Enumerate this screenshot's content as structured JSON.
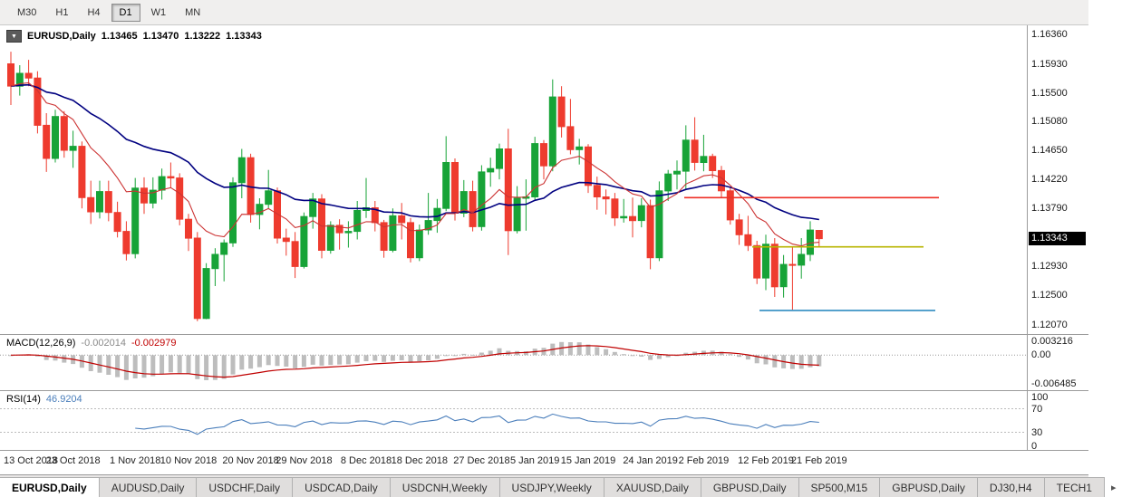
{
  "toolbar": {
    "timeframes": [
      {
        "label": "M30",
        "active": false
      },
      {
        "label": "H1",
        "active": false
      },
      {
        "label": "H4",
        "active": false
      },
      {
        "label": "D1",
        "active": true
      },
      {
        "label": "W1",
        "active": false
      },
      {
        "label": "MN",
        "active": false
      }
    ]
  },
  "chart_header": {
    "dropdown_icon": "▼",
    "symbol_label": "EURUSD,Daily",
    "open": "1.13465",
    "high": "1.13470",
    "low": "1.13222",
    "close": "1.13343"
  },
  "price_axis": {
    "labels": [
      "1.16360",
      "1.15930",
      "1.15500",
      "1.15080",
      "1.14650",
      "1.14220",
      "1.13790",
      "1.12930",
      "1.12500",
      "1.12070"
    ],
    "current": "1.13343",
    "current_value": 1.13343
  },
  "indicators": {
    "macd": {
      "label": "MACD(12,26,9)",
      "main_value": "-0.002014",
      "signal_value": "-0.002979",
      "axis": [
        {
          "text": "0.003216",
          "value": 0.003216
        },
        {
          "text": "0.00",
          "value": 0
        },
        {
          "text": "-0.006485",
          "value": -0.006485
        }
      ]
    },
    "rsi": {
      "label": "RSI(14)",
      "value": "46.9204",
      "axis": [
        {
          "text": "100",
          "value": 100
        },
        {
          "text": "70",
          "value": 70
        },
        {
          "text": "30",
          "value": 30
        },
        {
          "text": "0",
          "value": 0
        }
      ]
    }
  },
  "date_axis": {
    "labels": [
      {
        "text": "13 Oct 2018",
        "idx": 0
      },
      {
        "text": "23 Oct 2018",
        "idx": 7
      },
      {
        "text": "1 Nov 2018",
        "idx": 14
      },
      {
        "text": "10 Nov 2018",
        "idx": 20
      },
      {
        "text": "20 Nov 2018",
        "idx": 27
      },
      {
        "text": "29 Nov 2018",
        "idx": 33
      },
      {
        "text": "8 Dec 2018",
        "idx": 40
      },
      {
        "text": "18 Dec 2018",
        "idx": 46
      },
      {
        "text": "27 Dec 2018",
        "idx": 53
      },
      {
        "text": "5 Jan 2019",
        "idx": 59
      },
      {
        "text": "15 Jan 2019",
        "idx": 65
      },
      {
        "text": "24 Jan 2019",
        "idx": 72
      },
      {
        "text": "2 Feb 2019",
        "idx": 78
      },
      {
        "text": "12 Feb 2019",
        "idx": 85
      },
      {
        "text": "21 Feb 2019",
        "idx": 91
      }
    ]
  },
  "tabs": [
    {
      "label": "EURUSD,Daily",
      "active": true
    },
    {
      "label": "AUDUSD,Daily",
      "active": false
    },
    {
      "label": "USDCHF,Daily",
      "active": false
    },
    {
      "label": "USDCAD,Daily",
      "active": false
    },
    {
      "label": "USDCNH,Weekly",
      "active": false
    },
    {
      "label": "USDJPY,Weekly",
      "active": false
    },
    {
      "label": "XAUUSD,Daily",
      "active": false
    },
    {
      "label": "GBPUSD,Daily",
      "active": false
    },
    {
      "label": "SP500,M15",
      "active": false
    },
    {
      "label": "GBPUSD,Daily",
      "active": false
    },
    {
      "label": "DJ30,H4",
      "active": false
    },
    {
      "label": "TECH1",
      "active": false
    }
  ],
  "tabbar": {
    "scroll_right_icon": "▸"
  },
  "colors": {
    "candle_up": "#17a337",
    "candle_down": "#ee3b2e",
    "ma_slow": "#000080",
    "ma_fast": "#cc3333",
    "macd_hist": "#bdbdbd",
    "macd_signal": "#c00000",
    "rsi_line": "#4a7ebb",
    "axis_line": "#9c9c9c",
    "price_marker_bg": "#000000"
  },
  "chart_data": {
    "type": "candlestick",
    "symbol": "EURUSD",
    "timeframe": "Daily",
    "title": "EURUSD,Daily",
    "ylim": [
      1.1193,
      1.165
    ],
    "overlays": {
      "ma_fast_period": 10,
      "ma_slow_period": 30
    },
    "macd_params": [
      12,
      26,
      9
    ],
    "rsi_period": 14,
    "hlines": [
      {
        "price": 1.1395,
        "x1": 0.667,
        "x2": 0.915,
        "color": "#ee2e24"
      },
      {
        "price": 1.1322,
        "x1": 0.733,
        "x2": 0.9,
        "color": "#b8b400"
      },
      {
        "price": 1.1228,
        "x1": 0.74,
        "x2": 0.912,
        "color": "#2e8bc0"
      }
    ],
    "ohlc": [
      [
        1.1593,
        1.1611,
        1.1532,
        1.156
      ],
      [
        1.156,
        1.1591,
        1.1546,
        1.1579
      ],
      [
        1.1579,
        1.1599,
        1.156,
        1.1572
      ],
      [
        1.1572,
        1.1582,
        1.149,
        1.1502
      ],
      [
        1.1502,
        1.152,
        1.1433,
        1.1453
      ],
      [
        1.1453,
        1.1525,
        1.1447,
        1.1515
      ],
      [
        1.1515,
        1.1523,
        1.1454,
        1.1465
      ],
      [
        1.1465,
        1.1494,
        1.1439,
        1.1471
      ],
      [
        1.1471,
        1.1478,
        1.1379,
        1.1395
      ],
      [
        1.1395,
        1.142,
        1.1356,
        1.1374
      ],
      [
        1.1374,
        1.142,
        1.1364,
        1.1404
      ],
      [
        1.1404,
        1.142,
        1.136,
        1.1373
      ],
      [
        1.1373,
        1.1389,
        1.1336,
        1.1345
      ],
      [
        1.1345,
        1.136,
        1.1302,
        1.1312
      ],
      [
        1.1312,
        1.1424,
        1.1305,
        1.1409
      ],
      [
        1.1409,
        1.1425,
        1.1371,
        1.1387
      ],
      [
        1.1387,
        1.1425,
        1.1379,
        1.1406
      ],
      [
        1.1406,
        1.1438,
        1.1392,
        1.1426
      ],
      [
        1.1426,
        1.1447,
        1.141,
        1.1424
      ],
      [
        1.1424,
        1.1431,
        1.1354,
        1.1363
      ],
      [
        1.1363,
        1.1371,
        1.1316,
        1.1335
      ],
      [
        1.1335,
        1.1344,
        1.1212,
        1.1216
      ],
      [
        1.1216,
        1.1298,
        1.1215,
        1.129
      ],
      [
        1.129,
        1.132,
        1.1264,
        1.1311
      ],
      [
        1.1311,
        1.1333,
        1.1271,
        1.1328
      ],
      [
        1.1328,
        1.1425,
        1.1322,
        1.1417
      ],
      [
        1.1417,
        1.1467,
        1.1394,
        1.1454
      ],
      [
        1.1454,
        1.146,
        1.1358,
        1.137
      ],
      [
        1.137,
        1.1394,
        1.1348,
        1.1385
      ],
      [
        1.1385,
        1.1436,
        1.1378,
        1.1405
      ],
      [
        1.1405,
        1.141,
        1.1327,
        1.1335
      ],
      [
        1.1335,
        1.1349,
        1.1309,
        1.133
      ],
      [
        1.133,
        1.1344,
        1.1276,
        1.1293
      ],
      [
        1.1293,
        1.1373,
        1.129,
        1.1367
      ],
      [
        1.1367,
        1.1402,
        1.1349,
        1.1393
      ],
      [
        1.1393,
        1.14,
        1.1305,
        1.1317
      ],
      [
        1.1317,
        1.136,
        1.1312,
        1.1354
      ],
      [
        1.1354,
        1.1363,
        1.1318,
        1.1343
      ],
      [
        1.1343,
        1.136,
        1.1321,
        1.1345
      ],
      [
        1.1345,
        1.139,
        1.1333,
        1.1376
      ],
      [
        1.1376,
        1.1424,
        1.1365,
        1.138
      ],
      [
        1.138,
        1.139,
        1.1345,
        1.1358
      ],
      [
        1.1358,
        1.1362,
        1.1306,
        1.1317
      ],
      [
        1.1317,
        1.1379,
        1.1314,
        1.1368
      ],
      [
        1.1368,
        1.1387,
        1.1333,
        1.1358
      ],
      [
        1.1358,
        1.1365,
        1.1299,
        1.1306
      ],
      [
        1.1306,
        1.1355,
        1.1301,
        1.1347
      ],
      [
        1.1347,
        1.1402,
        1.134,
        1.1361
      ],
      [
        1.1361,
        1.1393,
        1.1343,
        1.1379
      ],
      [
        1.1379,
        1.1486,
        1.1375,
        1.1447
      ],
      [
        1.1447,
        1.1453,
        1.1361,
        1.1372
      ],
      [
        1.1372,
        1.1421,
        1.1366,
        1.1404
      ],
      [
        1.1404,
        1.142,
        1.1345,
        1.1352
      ],
      [
        1.1352,
        1.1443,
        1.1346,
        1.1433
      ],
      [
        1.1433,
        1.1454,
        1.1411,
        1.1438
      ],
      [
        1.1438,
        1.1475,
        1.1422,
        1.1467
      ],
      [
        1.1467,
        1.1497,
        1.131,
        1.1346
      ],
      [
        1.1346,
        1.1412,
        1.1342,
        1.1394
      ],
      [
        1.1394,
        1.1422,
        1.1346,
        1.1396
      ],
      [
        1.1396,
        1.1485,
        1.1391,
        1.1475
      ],
      [
        1.1475,
        1.148,
        1.1422,
        1.1442
      ],
      [
        1.1442,
        1.157,
        1.1434,
        1.1544
      ],
      [
        1.1544,
        1.156,
        1.1484,
        1.15
      ],
      [
        1.15,
        1.1541,
        1.1459,
        1.1466
      ],
      [
        1.1466,
        1.1482,
        1.1444,
        1.147
      ],
      [
        1.147,
        1.1474,
        1.1402,
        1.1413
      ],
      [
        1.1413,
        1.1426,
        1.1377,
        1.1396
      ],
      [
        1.1396,
        1.1407,
        1.137,
        1.1393
      ],
      [
        1.1393,
        1.1402,
        1.1353,
        1.1365
      ],
      [
        1.1365,
        1.1393,
        1.1358,
        1.1367
      ],
      [
        1.1367,
        1.1395,
        1.1336,
        1.1361
      ],
      [
        1.1361,
        1.1394,
        1.1351,
        1.1383
      ],
      [
        1.1383,
        1.1392,
        1.1289,
        1.1306
      ],
      [
        1.1306,
        1.1419,
        1.1301,
        1.1405
      ],
      [
        1.1405,
        1.1436,
        1.139,
        1.143
      ],
      [
        1.143,
        1.145,
        1.1407,
        1.1434
      ],
      [
        1.1434,
        1.1502,
        1.1406,
        1.148
      ],
      [
        1.148,
        1.1514,
        1.1435,
        1.1447
      ],
      [
        1.1447,
        1.1488,
        1.1434,
        1.1456
      ],
      [
        1.1456,
        1.146,
        1.1424,
        1.1435
      ],
      [
        1.1435,
        1.1442,
        1.1395,
        1.1405
      ],
      [
        1.1405,
        1.141,
        1.1355,
        1.1362
      ],
      [
        1.1362,
        1.1371,
        1.1325,
        1.134
      ],
      [
        1.134,
        1.1368,
        1.1316,
        1.1324
      ],
      [
        1.1324,
        1.1331,
        1.1267,
        1.1276
      ],
      [
        1.1276,
        1.134,
        1.1258,
        1.1326
      ],
      [
        1.1326,
        1.1335,
        1.1248,
        1.1263
      ],
      [
        1.1263,
        1.131,
        1.1247,
        1.1296
      ],
      [
        1.1296,
        1.1321,
        1.1229,
        1.1295
      ],
      [
        1.1295,
        1.1335,
        1.1275,
        1.1311
      ],
      [
        1.1311,
        1.136,
        1.1301,
        1.1347
      ],
      [
        1.13465,
        1.1347,
        1.13222,
        1.13343
      ]
    ]
  }
}
